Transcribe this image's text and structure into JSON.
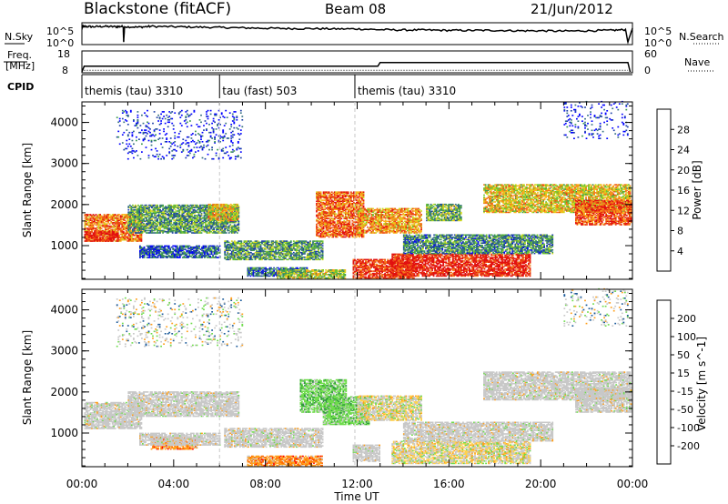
{
  "header": {
    "station": "Blackstone (fitACF)",
    "beam": "Beam 08",
    "date": "21/Jun/2012"
  },
  "colors": {
    "black": "#000000",
    "grid": "#c8c8c8"
  },
  "chart_data": [
    {
      "id": "noise-panel",
      "type": "line",
      "left_label": "N.Sky",
      "right_label": "N.Search",
      "left_ticks": [
        "10^5",
        "10^0"
      ],
      "right_ticks": [
        "10^5",
        "10^0"
      ],
      "series_sky_log": [
        [
          0.0,
          4.2
        ],
        [
          0.1,
          4.5
        ],
        [
          0.5,
          4.4
        ],
        [
          1.0,
          4.5
        ],
        [
          1.5,
          4.4
        ],
        [
          1.8,
          4.5
        ],
        [
          1.82,
          0.2
        ],
        [
          1.86,
          4.4
        ],
        [
          2.5,
          4.3
        ],
        [
          3.0,
          4.5
        ],
        [
          4.0,
          4.4
        ],
        [
          5.0,
          4.3
        ],
        [
          6.0,
          4.2
        ],
        [
          7.0,
          4.1
        ],
        [
          8.0,
          4.0
        ],
        [
          9.0,
          3.9
        ],
        [
          10.0,
          3.9
        ],
        [
          11.0,
          3.8
        ],
        [
          12.0,
          3.8
        ],
        [
          13.0,
          3.6
        ],
        [
          14.0,
          3.5
        ],
        [
          15.0,
          3.5
        ],
        [
          16.0,
          3.4
        ],
        [
          17.0,
          3.4
        ],
        [
          18.0,
          3.4
        ],
        [
          19.0,
          3.3
        ],
        [
          20.0,
          3.3
        ],
        [
          21.0,
          3.2
        ],
        [
          22.0,
          3.3
        ],
        [
          23.0,
          3.4
        ],
        [
          23.7,
          3.6
        ],
        [
          23.8,
          0.2
        ],
        [
          24.0,
          4.0
        ]
      ]
    },
    {
      "id": "freq-panel",
      "type": "line",
      "left_label_top": "Freq.",
      "left_label_bottom": "[MHz]",
      "right_label": "Nave",
      "left_ticks": [
        "18",
        "8"
      ],
      "right_ticks": [
        "60",
        "0"
      ],
      "ylim_freq": [
        8,
        18
      ],
      "ylim_nave": [
        0,
        60
      ],
      "freq": [
        [
          0.0,
          8.0
        ],
        [
          0.1,
          10.8
        ],
        [
          12.9,
          10.8
        ],
        [
          13.0,
          12.7
        ],
        [
          23.8,
          12.7
        ],
        [
          23.9,
          8.0
        ]
      ],
      "nave": [
        [
          0.1,
          5
        ],
        [
          23.8,
          5
        ]
      ]
    },
    {
      "id": "cpid-panel",
      "type": "table",
      "label": "CPID",
      "segments": [
        {
          "start": 0.0,
          "label": "themis (tau) 3310"
        },
        {
          "start": 6.0,
          "label": "tau (fast) 503"
        },
        {
          "start": 11.9,
          "label": "themis (tau) 3310"
        }
      ]
    },
    {
      "id": "power-panel",
      "type": "heatmap",
      "ylabel": "Slant Range [km]",
      "xlim": [
        0,
        24
      ],
      "ylim": [
        180,
        4500
      ],
      "yticks": [
        1000,
        2000,
        3000,
        4000
      ],
      "colorbar_label": "Power [dB]",
      "colorbar_ticks": [
        "28",
        "24",
        "20",
        "16",
        "12",
        "8",
        "4"
      ],
      "colorbar_colors": [
        "#0000ff",
        "#1c3fa8",
        "#357080",
        "#3d9a52",
        "#71c431",
        "#d2d81e",
        "#fbb31a",
        "#f47c1a",
        "#ec4715",
        "#e21010"
      ],
      "regions": [
        {
          "t0": 0.1,
          "t1": 2.6,
          "r0": 1100,
          "r1": 1750,
          "level": 0.75
        },
        {
          "t0": 0.1,
          "t1": 1.6,
          "r0": 1100,
          "r1": 1350,
          "level": 0.95
        },
        {
          "t0": 2.0,
          "t1": 6.8,
          "r0": 1300,
          "r1": 2000,
          "level": 0.35
        },
        {
          "t0": 5.5,
          "t1": 6.8,
          "r0": 1600,
          "r1": 2000,
          "level": 0.6
        },
        {
          "t0": 2.5,
          "t1": 6.0,
          "r0": 700,
          "r1": 1000,
          "level": 0.2
        },
        {
          "t0": 6.2,
          "t1": 10.5,
          "r0": 650,
          "r1": 1100,
          "level": 0.35
        },
        {
          "t0": 7.2,
          "t1": 9.8,
          "r0": 250,
          "r1": 450,
          "level": 0.25
        },
        {
          "t0": 8.5,
          "t1": 11.5,
          "r0": 200,
          "r1": 420,
          "level": 0.5
        },
        {
          "t0": 10.2,
          "t1": 12.3,
          "r0": 1200,
          "r1": 2300,
          "level": 0.8
        },
        {
          "t0": 12.0,
          "t1": 14.8,
          "r0": 1300,
          "r1": 1900,
          "level": 0.7
        },
        {
          "t0": 11.8,
          "t1": 14.5,
          "r0": 200,
          "r1": 650,
          "level": 0.9
        },
        {
          "t0": 13.5,
          "t1": 19.5,
          "r0": 250,
          "r1": 800,
          "level": 0.95
        },
        {
          "t0": 14.0,
          "t1": 20.5,
          "r0": 800,
          "r1": 1250,
          "level": 0.3
        },
        {
          "t0": 15.0,
          "t1": 16.5,
          "r0": 1600,
          "r1": 2000,
          "level": 0.4
        },
        {
          "t0": 17.5,
          "t1": 23.9,
          "r0": 1800,
          "r1": 2500,
          "level": 0.6
        },
        {
          "t0": 21.5,
          "t1": 23.9,
          "r0": 1500,
          "r1": 2100,
          "level": 0.85
        },
        {
          "t0": 1.5,
          "t1": 7.0,
          "r0": 3100,
          "r1": 4300,
          "level": 0.1
        },
        {
          "t0": 21.0,
          "t1": 23.8,
          "r0": 3600,
          "r1": 4500,
          "level": 0.1
        }
      ]
    },
    {
      "id": "velocity-panel",
      "type": "heatmap",
      "ylabel": "Slant Range [km]",
      "xlabel": "Time UT",
      "xlim": [
        0,
        24
      ],
      "ylim": [
        180,
        4500
      ],
      "yticks": [
        1000,
        2000,
        3000,
        4000
      ],
      "xticks": [
        "00:00",
        "04:00",
        "08:00",
        "12:00",
        "16:00",
        "20:00",
        "00:00"
      ],
      "colorbar_label": "Velocity [m s^-1]",
      "colorbar_ticks": [
        "200",
        "100",
        "50",
        "15",
        "-15",
        "-50",
        "-100",
        "-200"
      ],
      "colorbar_colors": [
        "#ff0000",
        "#ff6a00",
        "#ff9f1a",
        "#ffd24d",
        "#c8c8c8",
        "#c8c8c8",
        "#6fdc4c",
        "#2e9a3c",
        "#1b5a9a",
        "#0000cc"
      ],
      "regions": [
        {
          "t0": 0.1,
          "t1": 2.6,
          "r0": 1450,
          "r1": 1750,
          "class": "ground"
        },
        {
          "t0": 0.1,
          "t1": 2.6,
          "r0": 1100,
          "r1": 1450,
          "class": "ground"
        },
        {
          "t0": 2.0,
          "t1": 6.8,
          "r0": 1400,
          "r1": 2000,
          "class": "ground"
        },
        {
          "t0": 3.0,
          "t1": 5.0,
          "r0": 600,
          "r1": 900,
          "class": "neg"
        },
        {
          "t0": 2.5,
          "t1": 6.0,
          "r0": 700,
          "r1": 1000,
          "class": "ground"
        },
        {
          "t0": 6.2,
          "t1": 10.5,
          "r0": 650,
          "r1": 1100,
          "class": "ground"
        },
        {
          "t0": 7.2,
          "t1": 10.5,
          "r0": 200,
          "r1": 450,
          "class": "neg"
        },
        {
          "t0": 9.5,
          "t1": 11.5,
          "r0": 1500,
          "r1": 2300,
          "class": "pos"
        },
        {
          "t0": 10.5,
          "t1": 12.5,
          "r0": 1200,
          "r1": 1900,
          "class": "pos"
        },
        {
          "t0": 12.0,
          "t1": 14.8,
          "r0": 1300,
          "r1": 1900,
          "class": "mix"
        },
        {
          "t0": 11.8,
          "t1": 13.0,
          "r0": 300,
          "r1": 700,
          "class": "ground"
        },
        {
          "t0": 13.5,
          "t1": 19.5,
          "r0": 250,
          "r1": 800,
          "class": "mix"
        },
        {
          "t0": 14.0,
          "t1": 20.5,
          "r0": 800,
          "r1": 1250,
          "class": "ground"
        },
        {
          "t0": 17.5,
          "t1": 23.9,
          "r0": 1800,
          "r1": 2500,
          "class": "ground"
        },
        {
          "t0": 21.5,
          "t1": 23.9,
          "r0": 1500,
          "r1": 2100,
          "class": "ground"
        },
        {
          "t0": 1.5,
          "t1": 7.0,
          "r0": 3100,
          "r1": 4300,
          "class": "sparse"
        },
        {
          "t0": 21.0,
          "t1": 23.8,
          "r0": 3600,
          "r1": 4500,
          "class": "sparse"
        }
      ]
    }
  ]
}
